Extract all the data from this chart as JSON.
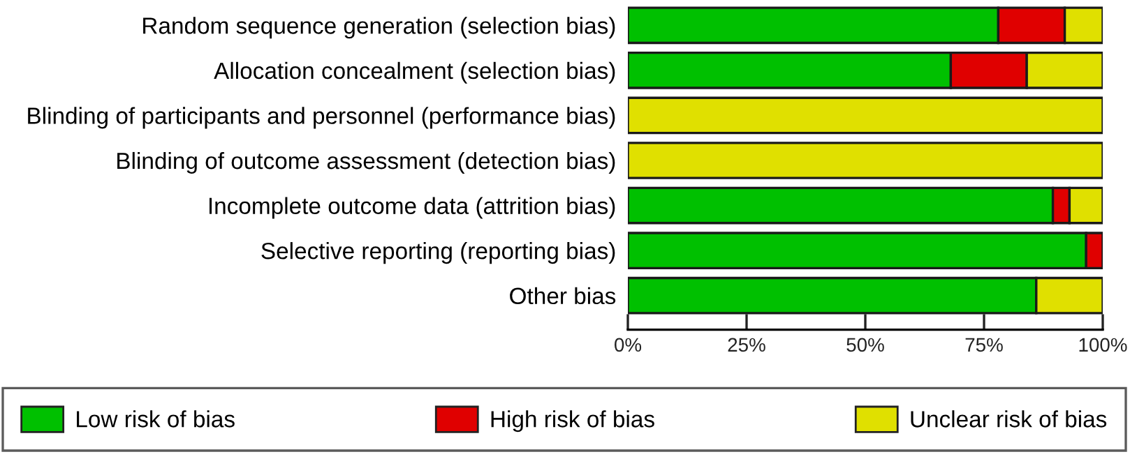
{
  "chart_data": {
    "type": "bar",
    "orientation": "horizontal",
    "stacked": true,
    "categories": [
      "Random sequence generation (selection bias)",
      "Allocation concealment (selection bias)",
      "Blinding of participants and personnel (performance bias)",
      "Blinding of outcome assessment (detection bias)",
      "Incomplete outcome data (attrition bias)",
      "Selective reporting (reporting bias)",
      "Other bias"
    ],
    "series": [
      {
        "name": "Low risk of bias",
        "color": "#00c000",
        "values": [
          78,
          68,
          0,
          0,
          89.5,
          96.5,
          86
        ]
      },
      {
        "name": "High risk of bias",
        "color": "#e00000",
        "values": [
          14,
          16,
          0,
          0,
          3.5,
          3.5,
          0
        ]
      },
      {
        "name": "Unclear risk of bias",
        "color": "#e0e000",
        "values": [
          8,
          16,
          100,
          100,
          7,
          0,
          14
        ]
      }
    ],
    "xlim": [
      0,
      100
    ],
    "xticks": [
      {
        "value": 0,
        "label": "0%"
      },
      {
        "value": 25,
        "label": "25%"
      },
      {
        "value": 50,
        "label": "50%"
      },
      {
        "value": 75,
        "label": "75%"
      },
      {
        "value": 100,
        "label": "100%"
      }
    ],
    "grid": false,
    "legend": "bottom"
  }
}
